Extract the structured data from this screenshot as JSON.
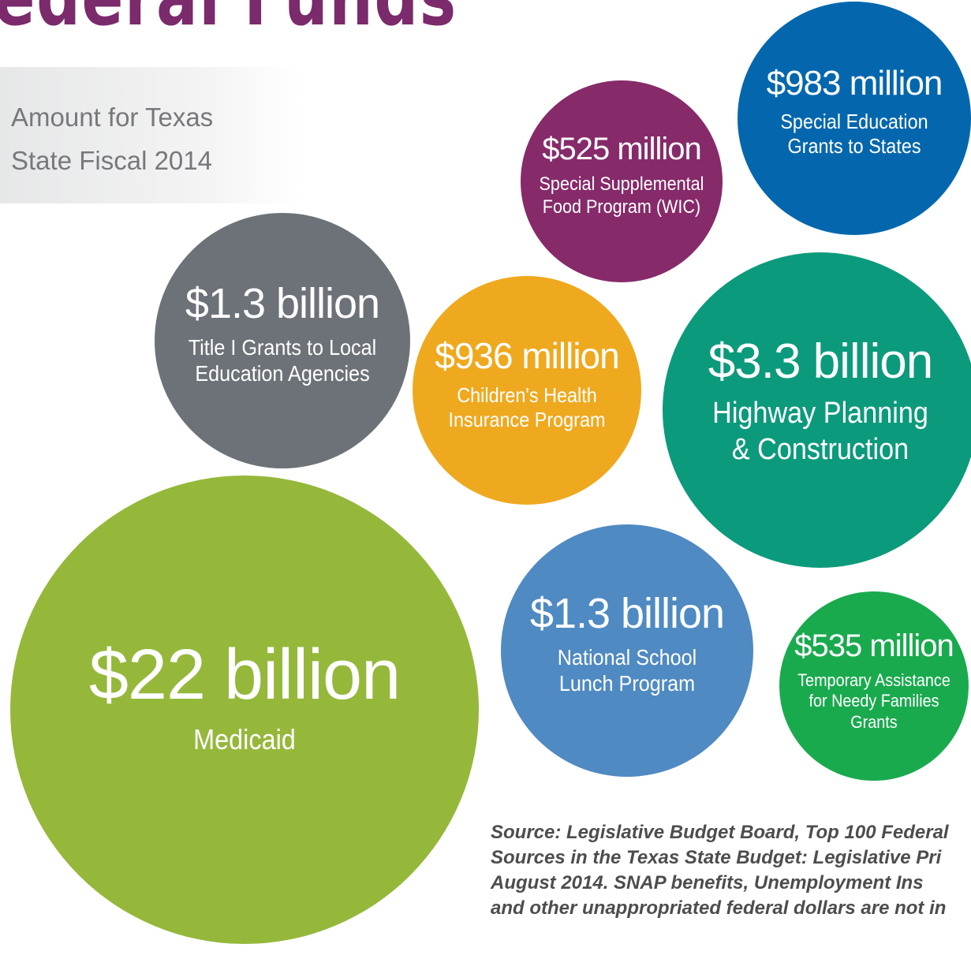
{
  "chart_data": {
    "type": "bubble",
    "title": "Federal Funds",
    "subtitle": [
      "Amount for Texas",
      "State Fiscal 2014"
    ],
    "categories": [
      "Special Supplemental Food Program (WIC)",
      "Special Education Grants to States",
      "Title I Grants to Local Education Agencies",
      "Children's Health Insurance Program",
      "Highway Planning & Construction",
      "Medicaid",
      "National School Lunch Program",
      "Temporary Assistance for Needy Families Grants"
    ],
    "values": [
      525000000,
      983000000,
      1300000000,
      936000000,
      3300000000,
      22000000000,
      1300000000,
      535000000
    ],
    "value_labels": [
      "$525 million",
      "$983 million",
      "$1.3 billion",
      "$936 million",
      "$3.3 billion",
      "$22 billion",
      "$1.3 billion",
      "$535 million"
    ],
    "colors": [
      "#862a6a",
      "#0467ae",
      "#6d7278",
      "#efa91f",
      "#0c9a7c",
      "#95b83b",
      "#4f8ac2",
      "#1aaa4e"
    ],
    "source": [
      "Source: Legislative Budget Board, Top 100 Federal",
      "Sources in the Texas State Budget: Legislative Pri",
      "August 2014.  SNAP benefits, Unemployment Ins",
      "and other unappropriated federal dollars are not in"
    ]
  }
}
